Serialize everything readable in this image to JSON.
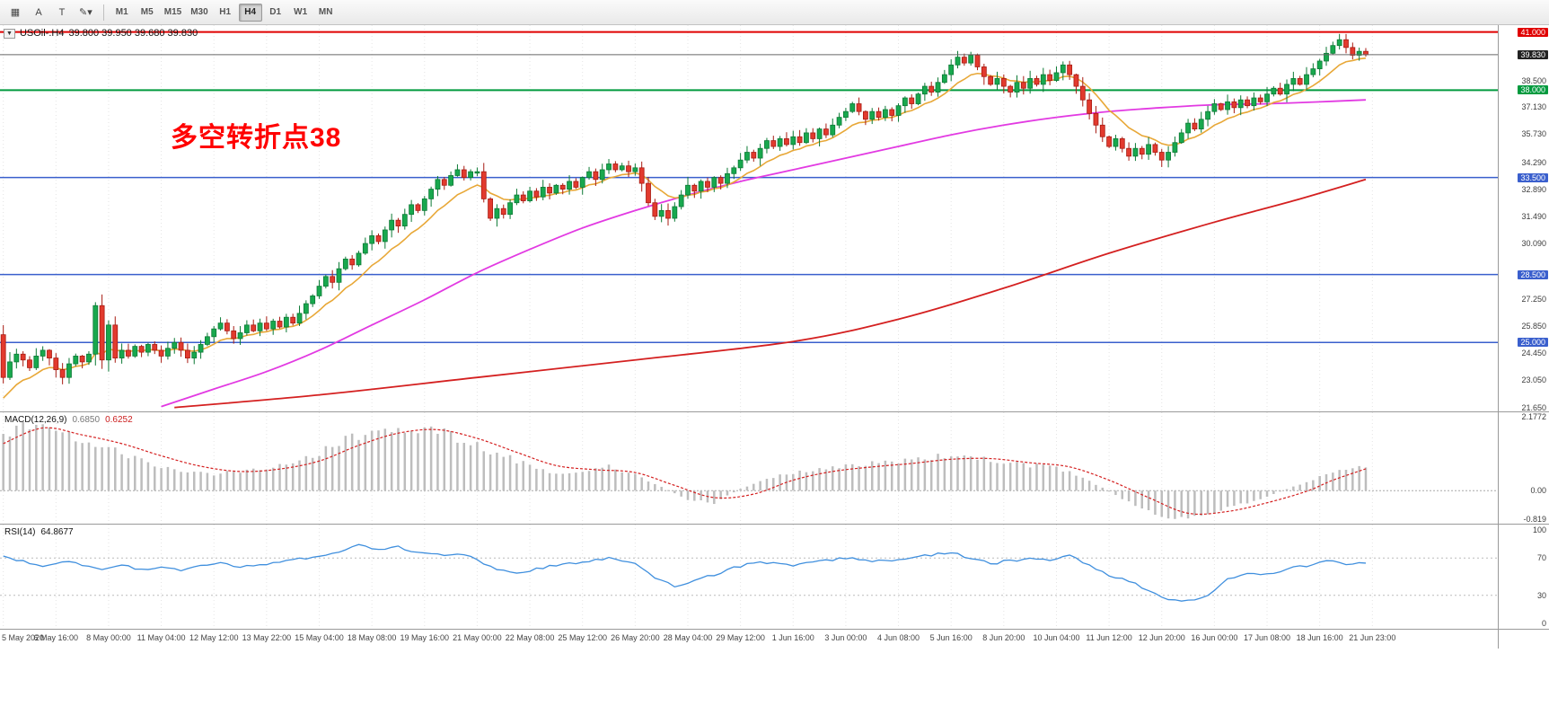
{
  "toolbar": {
    "tool_icons": [
      {
        "name": "indicator-list-icon",
        "glyph": "▦"
      },
      {
        "name": "cursor-tool-icon",
        "glyph": "A"
      },
      {
        "name": "text-tool-icon",
        "glyph": "T"
      },
      {
        "name": "draw-tools-icon",
        "glyph": "✎▾"
      }
    ],
    "timeframes": [
      "M1",
      "M5",
      "M15",
      "M30",
      "H1",
      "H4",
      "D1",
      "W1",
      "MN"
    ],
    "active_timeframe": "H4"
  },
  "chart": {
    "symbol_period": "USOil-.H4",
    "ohlc_text": "39.800 39.950 39.680 39.830",
    "annotation": "多空转折点38"
  },
  "macd_panel": {
    "name": "MACD(12,26,9)",
    "main_value": "0.6850",
    "signal_value": "0.6252"
  },
  "rsi_panel": {
    "name": "RSI(14)",
    "value": "64.8677"
  },
  "chart_data": {
    "type": "candlestick",
    "symbol": "USOil-",
    "timeframe": "H4",
    "colors": {
      "up": "#18a84e",
      "up_stroke": "#0c7a35",
      "down": "#e23a2e",
      "down_stroke": "#a81b12",
      "ma_fast": "#e8a838",
      "ma_medium": "#e23ae2",
      "ma_slow": "#d42020",
      "macd_hist": "#bdbdbd",
      "macd_signal": "#d42020",
      "rsi": "#3f8fde",
      "hline_red": "#e00000",
      "hline_green": "#009a3e",
      "hline_blue": "#3a5fcd",
      "current_badge": "#222222",
      "grid": "#e4e4e4"
    },
    "bars": {
      "first_open": 25.4,
      "closes": [
        23.2,
        24.0,
        24.4,
        24.1,
        23.7,
        24.3,
        24.6,
        24.2,
        23.6,
        23.2,
        23.9,
        24.3,
        24.0,
        24.4,
        26.9,
        24.1,
        25.9,
        24.2,
        24.6,
        24.3,
        24.8,
        24.5,
        24.9,
        24.6,
        24.3,
        24.7,
        25.0,
        24.6,
        24.2,
        24.5,
        24.9,
        25.3,
        25.7,
        26.0,
        25.6,
        25.2,
        25.5,
        25.9,
        25.6,
        26.0,
        25.7,
        26.1,
        25.8,
        26.3,
        26.0,
        26.5,
        27.0,
        27.4,
        27.9,
        28.4,
        28.1,
        28.8,
        29.3,
        29.0,
        29.6,
        30.1,
        30.5,
        30.2,
        30.8,
        31.3,
        31.0,
        31.6,
        32.1,
        31.8,
        32.4,
        32.9,
        33.4,
        33.1,
        33.6,
        33.9,
        33.5,
        33.8,
        33.8,
        32.4,
        31.4,
        31.9,
        31.6,
        32.2,
        32.6,
        32.3,
        32.8,
        32.5,
        33.0,
        32.7,
        33.1,
        32.9,
        33.3,
        33.0,
        33.5,
        33.8,
        33.4,
        33.9,
        34.2,
        33.9,
        34.1,
        33.8,
        34.0,
        33.2,
        32.2,
        31.5,
        31.8,
        31.4,
        32.0,
        32.6,
        33.1,
        32.8,
        33.3,
        33.0,
        33.5,
        33.2,
        33.7,
        34.0,
        34.4,
        34.8,
        34.5,
        35.0,
        35.4,
        35.1,
        35.5,
        35.2,
        35.6,
        35.3,
        35.8,
        35.5,
        36.0,
        35.7,
        36.2,
        36.6,
        36.9,
        37.3,
        36.9,
        36.5,
        36.9,
        36.6,
        37.0,
        36.7,
        37.2,
        37.6,
        37.3,
        37.8,
        38.2,
        37.9,
        38.4,
        38.8,
        39.3,
        39.7,
        39.4,
        39.8,
        39.2,
        38.7,
        38.3,
        38.6,
        38.2,
        37.9,
        38.4,
        38.1,
        38.6,
        38.3,
        38.8,
        38.5,
        38.9,
        39.3,
        38.8,
        38.2,
        37.5,
        36.8,
        36.2,
        35.6,
        35.1,
        35.5,
        35.0,
        34.6,
        35.0,
        34.7,
        35.2,
        34.8,
        34.4,
        34.8,
        35.3,
        35.8,
        36.3,
        36.0,
        36.5,
        36.9,
        37.3,
        37.0,
        37.4,
        37.1,
        37.5,
        37.2,
        37.6,
        37.4,
        37.8,
        38.1,
        37.8,
        38.3,
        38.6,
        38.3,
        38.8,
        39.1,
        39.5,
        39.9,
        40.3,
        40.6,
        40.2,
        39.8,
        40.0,
        39.83
      ]
    },
    "current_price": 39.83,
    "hlines": [
      {
        "price": 41.0,
        "color_key": "hline_red",
        "width": 2
      },
      {
        "price": 38.0,
        "color_key": "hline_green",
        "width": 2
      },
      {
        "price": 33.5,
        "color_key": "hline_blue",
        "width": 1.5
      },
      {
        "price": 28.5,
        "color_key": "hline_blue",
        "width": 1.5
      },
      {
        "price": 25.0,
        "color_key": "hline_blue",
        "width": 1.5
      }
    ],
    "price_axis": {
      "min": 21.45,
      "max": 41.35,
      "ticks": [
        {
          "label": "41.000",
          "price": 41.0,
          "style": "red"
        },
        {
          "label": "39.830",
          "price": 39.83,
          "style": "current"
        },
        {
          "label": "38.500",
          "price": 38.5,
          "style": "plain"
        },
        {
          "label": "38.000",
          "price": 38.0,
          "style": "green"
        },
        {
          "label": "37.130",
          "price": 37.13,
          "style": "plain"
        },
        {
          "label": "35.730",
          "price": 35.73,
          "style": "plain"
        },
        {
          "label": "34.290",
          "price": 34.29,
          "style": "plain"
        },
        {
          "label": "33.500",
          "price": 33.5,
          "style": "blue"
        },
        {
          "label": "32.890",
          "price": 32.89,
          "style": "plain"
        },
        {
          "label": "31.490",
          "price": 31.49,
          "style": "plain"
        },
        {
          "label": "30.090",
          "price": 30.09,
          "style": "plain"
        },
        {
          "label": "28.500",
          "price": 28.5,
          "style": "blue"
        },
        {
          "label": "27.250",
          "price": 27.25,
          "style": "plain"
        },
        {
          "label": "25.850",
          "price": 25.85,
          "style": "plain"
        },
        {
          "label": "25.000",
          "price": 25.0,
          "style": "blue"
        },
        {
          "label": "24.450",
          "price": 24.45,
          "style": "plain"
        },
        {
          "label": "23.050",
          "price": 23.05,
          "style": "plain"
        },
        {
          "label": "21.650",
          "price": 21.65,
          "style": "plain"
        }
      ]
    },
    "ma": {
      "fast": {
        "period": 10,
        "seed": 21.9
      },
      "medium": {
        "points": [
          [
            24,
            21.7
          ],
          [
            32,
            22.6
          ],
          [
            40,
            23.5
          ],
          [
            48,
            24.6
          ],
          [
            56,
            25.9
          ],
          [
            64,
            27.2
          ],
          [
            72,
            28.6
          ],
          [
            80,
            29.8
          ],
          [
            88,
            30.9
          ],
          [
            96,
            31.8
          ],
          [
            104,
            32.6
          ],
          [
            112,
            33.3
          ],
          [
            120,
            33.9
          ],
          [
            128,
            34.5
          ],
          [
            136,
            35.1
          ],
          [
            144,
            35.7
          ],
          [
            152,
            36.2
          ],
          [
            160,
            36.6
          ],
          [
            168,
            36.9
          ],
          [
            176,
            37.1
          ],
          [
            184,
            37.25
          ],
          [
            192,
            37.3
          ],
          [
            200,
            37.4
          ],
          [
            207,
            37.5
          ]
        ]
      },
      "slow": {
        "points": [
          [
            26,
            21.65
          ],
          [
            48,
            22.3
          ],
          [
            72,
            23.2
          ],
          [
            96,
            24.1
          ],
          [
            120,
            25.05
          ],
          [
            136,
            26.2
          ],
          [
            152,
            27.8
          ],
          [
            168,
            29.6
          ],
          [
            184,
            31.2
          ],
          [
            196,
            32.3
          ],
          [
            207,
            33.4
          ]
        ]
      }
    },
    "macd": {
      "range_max": 2.25,
      "range_min": -0.95,
      "axis": [
        {
          "label": "2.1772",
          "value": 2.1772
        },
        {
          "label": "0.00",
          "value": 0
        },
        {
          "label": "-0.819",
          "value": -0.819
        }
      ],
      "hist_points": [
        [
          0,
          1.55
        ],
        [
          3,
          1.9
        ],
        [
          6,
          1.75
        ],
        [
          9,
          1.6
        ],
        [
          12,
          1.45
        ],
        [
          16,
          1.25
        ],
        [
          20,
          0.95
        ],
        [
          24,
          0.7
        ],
        [
          28,
          0.52
        ],
        [
          32,
          0.48
        ],
        [
          36,
          0.55
        ],
        [
          40,
          0.6
        ],
        [
          44,
          0.8
        ],
        [
          48,
          1.1
        ],
        [
          52,
          1.45
        ],
        [
          56,
          1.7
        ],
        [
          60,
          1.85
        ],
        [
          64,
          1.8
        ],
        [
          68,
          1.6
        ],
        [
          72,
          1.3
        ],
        [
          76,
          1.0
        ],
        [
          80,
          0.72
        ],
        [
          84,
          0.5
        ],
        [
          88,
          0.58
        ],
        [
          92,
          0.68
        ],
        [
          96,
          0.45
        ],
        [
          100,
          0.1
        ],
        [
          104,
          -0.25
        ],
        [
          108,
          -0.35
        ],
        [
          112,
          0.05
        ],
        [
          116,
          0.35
        ],
        [
          120,
          0.5
        ],
        [
          124,
          0.6
        ],
        [
          128,
          0.72
        ],
        [
          132,
          0.78
        ],
        [
          136,
          0.82
        ],
        [
          140,
          0.92
        ],
        [
          144,
          1.02
        ],
        [
          148,
          0.98
        ],
        [
          152,
          0.82
        ],
        [
          156,
          0.72
        ],
        [
          160,
          0.68
        ],
        [
          164,
          0.38
        ],
        [
          168,
          -0.02
        ],
        [
          172,
          -0.45
        ],
        [
          176,
          -0.72
        ],
        [
          180,
          -0.8
        ],
        [
          184,
          -0.62
        ],
        [
          188,
          -0.4
        ],
        [
          192,
          -0.18
        ],
        [
          196,
          0.12
        ],
        [
          200,
          0.4
        ],
        [
          204,
          0.6
        ],
        [
          207,
          0.685
        ]
      ],
      "signal_points": [
        [
          0,
          1.35
        ],
        [
          6,
          1.8
        ],
        [
          12,
          1.6
        ],
        [
          18,
          1.35
        ],
        [
          24,
          1.0
        ],
        [
          30,
          0.7
        ],
        [
          36,
          0.55
        ],
        [
          42,
          0.62
        ],
        [
          48,
          0.85
        ],
        [
          54,
          1.3
        ],
        [
          60,
          1.65
        ],
        [
          66,
          1.75
        ],
        [
          72,
          1.5
        ],
        [
          78,
          1.1
        ],
        [
          84,
          0.72
        ],
        [
          90,
          0.6
        ],
        [
          96,
          0.52
        ],
        [
          102,
          0.15
        ],
        [
          108,
          -0.2
        ],
        [
          114,
          -0.1
        ],
        [
          120,
          0.3
        ],
        [
          126,
          0.55
        ],
        [
          132,
          0.68
        ],
        [
          138,
          0.78
        ],
        [
          144,
          0.9
        ],
        [
          150,
          0.92
        ],
        [
          156,
          0.8
        ],
        [
          162,
          0.68
        ],
        [
          168,
          0.3
        ],
        [
          174,
          -0.2
        ],
        [
          180,
          -0.65
        ],
        [
          186,
          -0.6
        ],
        [
          192,
          -0.35
        ],
        [
          198,
          -0.02
        ],
        [
          202,
          0.3
        ],
        [
          207,
          0.625
        ]
      ]
    },
    "rsi": {
      "levels": [
        70,
        30
      ],
      "axis": [
        {
          "label": "100",
          "value": 100
        },
        {
          "label": "70",
          "value": 70
        },
        {
          "label": "30",
          "value": 30
        },
        {
          "label": "0",
          "value": 0
        }
      ],
      "points": [
        [
          0,
          71
        ],
        [
          3,
          66
        ],
        [
          6,
          62
        ],
        [
          9,
          67
        ],
        [
          12,
          63
        ],
        [
          15,
          58
        ],
        [
          18,
          62
        ],
        [
          21,
          57
        ],
        [
          24,
          60
        ],
        [
          27,
          56
        ],
        [
          30,
          61
        ],
        [
          33,
          64
        ],
        [
          36,
          60
        ],
        [
          39,
          63
        ],
        [
          42,
          66
        ],
        [
          45,
          69
        ],
        [
          48,
          72
        ],
        [
          51,
          76
        ],
        [
          54,
          83
        ],
        [
          57,
          79
        ],
        [
          60,
          82
        ],
        [
          63,
          76
        ],
        [
          66,
          73
        ],
        [
          69,
          75
        ],
        [
          72,
          68
        ],
        [
          75,
          58
        ],
        [
          78,
          54
        ],
        [
          81,
          58
        ],
        [
          84,
          62
        ],
        [
          87,
          65
        ],
        [
          90,
          68
        ],
        [
          93,
          70
        ],
        [
          96,
          63
        ],
        [
          99,
          48
        ],
        [
          102,
          40
        ],
        [
          105,
          46
        ],
        [
          108,
          52
        ],
        [
          111,
          60
        ],
        [
          114,
          64
        ],
        [
          117,
          66
        ],
        [
          120,
          62
        ],
        [
          123,
          65
        ],
        [
          126,
          68
        ],
        [
          129,
          70
        ],
        [
          132,
          66
        ],
        [
          135,
          68
        ],
        [
          138,
          71
        ],
        [
          141,
          73
        ],
        [
          144,
          76
        ],
        [
          147,
          70
        ],
        [
          150,
          64
        ],
        [
          153,
          67
        ],
        [
          156,
          70
        ],
        [
          159,
          68
        ],
        [
          162,
          72
        ],
        [
          165,
          62
        ],
        [
          168,
          52
        ],
        [
          171,
          45
        ],
        [
          174,
          35
        ],
        [
          177,
          26
        ],
        [
          180,
          24
        ],
        [
          183,
          30
        ],
        [
          186,
          48
        ],
        [
          189,
          54
        ],
        [
          192,
          52
        ],
        [
          195,
          58
        ],
        [
          198,
          62
        ],
        [
          201,
          68
        ],
        [
          204,
          62
        ],
        [
          207,
          64.87
        ]
      ]
    },
    "time_labels": [
      "5 May 2020",
      "6 May 16:00",
      "8 May 00:00",
      "11 May 04:00",
      "12 May 12:00",
      "13 May 22:00",
      "15 May 04:00",
      "18 May 08:00",
      "19 May 16:00",
      "21 May 00:00",
      "22 May 08:00",
      "25 May 12:00",
      "26 May 20:00",
      "28 May 04:00",
      "29 May 12:00",
      "1 Jun 16:00",
      "3 Jun 00:00",
      "4 Jun 08:00",
      "5 Jun 16:00",
      "8 Jun 20:00",
      "10 Jun 04:00",
      "11 Jun 12:00",
      "12 Jun 20:00",
      "16 Jun 00:00",
      "17 Jun 08:00",
      "18 Jun 16:00",
      "21 Jun 23:00"
    ],
    "label_every_bars": 8
  }
}
